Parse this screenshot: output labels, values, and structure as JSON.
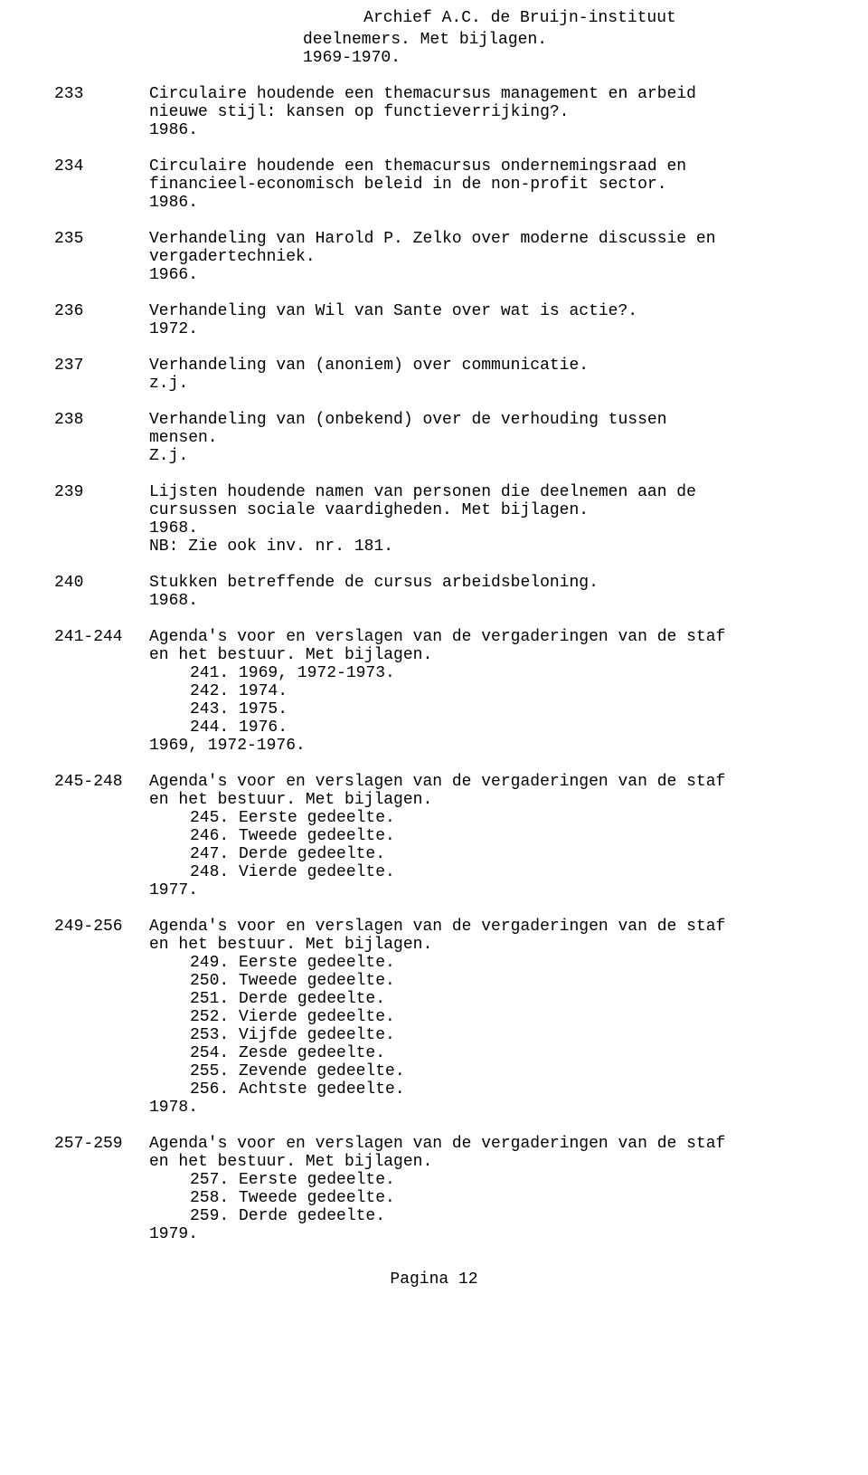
{
  "header": {
    "title": "Archief A.C. de Bruijn-instituut"
  },
  "pre_entry": {
    "line1": "deelnemers. Met bijlagen.",
    "line2": "1969-1970."
  },
  "entries": [
    {
      "num": "233",
      "lines": [
        "Circulaire houdende een themacursus management en arbeid",
        "nieuwe stijl: kansen op functieverrijking?.",
        "1986."
      ]
    },
    {
      "num": "234",
      "lines": [
        "Circulaire houdende een themacursus ondernemingsraad en",
        "financieel-economisch beleid in de non-profit sector.",
        "1986."
      ]
    },
    {
      "num": "235",
      "lines": [
        "Verhandeling van Harold P. Zelko over moderne discussie en",
        "vergadertechniek.",
        "1966."
      ]
    },
    {
      "num": "236",
      "lines": [
        "Verhandeling van Wil van Sante over wat is actie?.",
        "1972."
      ]
    },
    {
      "num": "237",
      "lines": [
        "Verhandeling van (anoniem) over communicatie.",
        "z.j."
      ]
    },
    {
      "num": "238",
      "lines": [
        "Verhandeling van (onbekend) over de verhouding tussen",
        "mensen.",
        "Z.j."
      ]
    },
    {
      "num": "239",
      "lines": [
        "Lijsten houdende namen van personen die deelnemen aan de",
        "cursussen sociale vaardigheden. Met bijlagen.",
        "1968.",
        "NB: Zie ook inv. nr. 181."
      ]
    },
    {
      "num": "240",
      "lines": [
        "Stukken betreffende de cursus arbeidsbeloning.",
        "1968."
      ]
    },
    {
      "num": "241-244",
      "lines": [
        "Agenda's voor en verslagen van de vergaderingen van de staf",
        "en het bestuur. Met bijlagen."
      ],
      "subs": [
        "241. 1969, 1972-1973.",
        "242. 1974.",
        "243. 1975.",
        "244. 1976."
      ],
      "trailing": [
        "1969, 1972-1976."
      ]
    },
    {
      "num": "245-248",
      "lines": [
        "Agenda's voor en verslagen van de vergaderingen van de staf",
        "en het bestuur. Met bijlagen."
      ],
      "subs": [
        "245. Eerste gedeelte.",
        "246. Tweede gedeelte.",
        "247. Derde gedeelte.",
        "248. Vierde gedeelte."
      ],
      "trailing": [
        "1977."
      ]
    },
    {
      "num": "249-256",
      "lines": [
        "Agenda's voor en verslagen van de vergaderingen van de staf",
        "en het bestuur. Met bijlagen."
      ],
      "subs": [
        "249. Eerste gedeelte.",
        "250. Tweede gedeelte.",
        "251. Derde gedeelte.",
        "252. Vierde gedeelte.",
        "253. Vijfde gedeelte.",
        "254. Zesde gedeelte.",
        "255. Zevende gedeelte.",
        "256. Achtste gedeelte."
      ],
      "trailing": [
        "1978."
      ]
    },
    {
      "num": "257-259",
      "lines": [
        "Agenda's voor en verslagen van de vergaderingen van de staf",
        "en het bestuur. Met bijlagen."
      ],
      "subs": [
        "257. Eerste gedeelte.",
        "258. Tweede gedeelte.",
        "259. Derde gedeelte."
      ],
      "trailing": [
        "1979."
      ]
    }
  ],
  "footer": {
    "page_label": "Pagina 12"
  }
}
